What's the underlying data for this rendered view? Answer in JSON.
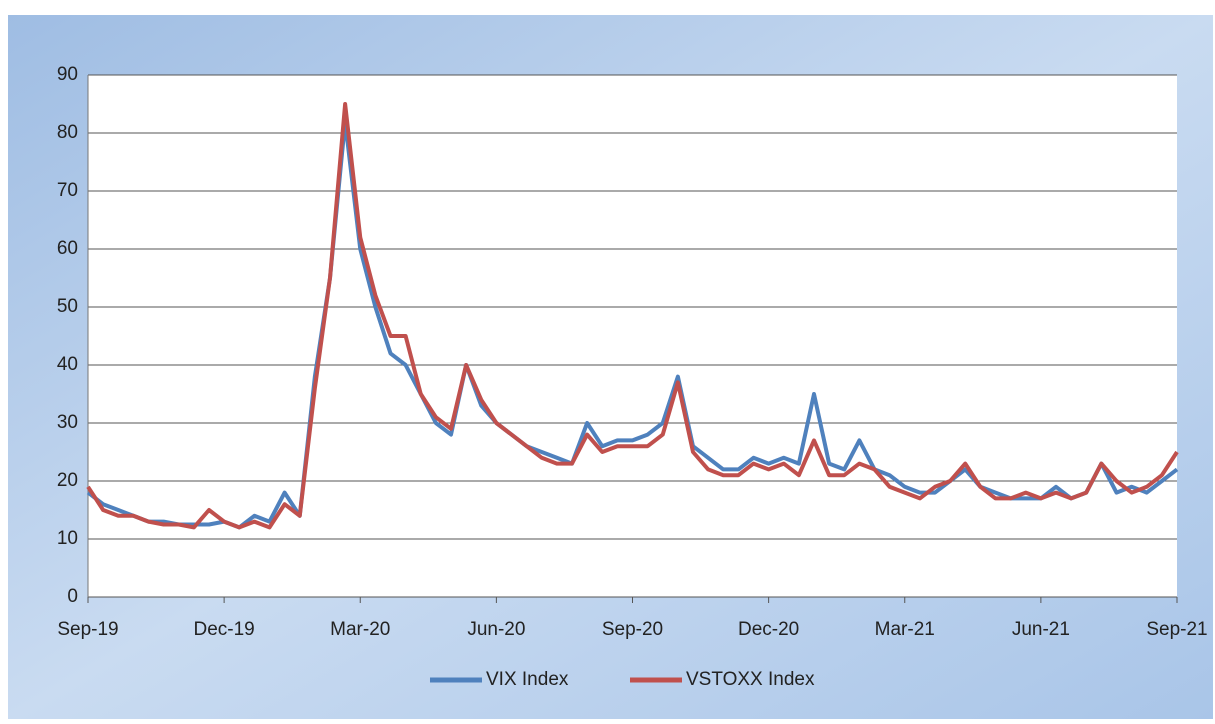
{
  "chart_data": {
    "type": "line",
    "categories": [
      "Sep-19",
      null,
      null,
      null,
      null,
      null,
      null,
      null,
      null,
      "Dec-19",
      null,
      null,
      null,
      null,
      null,
      null,
      null,
      null,
      "Mar-20",
      null,
      null,
      null,
      null,
      null,
      null,
      null,
      null,
      "Jun-20",
      null,
      null,
      null,
      null,
      null,
      null,
      null,
      null,
      "Sep-20",
      null,
      null,
      null,
      null,
      null,
      null,
      null,
      null,
      "Dec-20",
      null,
      null,
      null,
      null,
      null,
      null,
      null,
      null,
      "Mar-21",
      null,
      null,
      null,
      null,
      null,
      null,
      null,
      null,
      "Jun-21",
      null,
      null,
      null,
      null,
      null,
      null,
      null,
      null,
      "Sep-21"
    ],
    "series": [
      {
        "name": "VIX Index",
        "color": "#4f81bd",
        "values": [
          18,
          16,
          15,
          14,
          13,
          13,
          12.5,
          12.5,
          12.5,
          13,
          12,
          14,
          13,
          18,
          14,
          38,
          55,
          82,
          60,
          50,
          42,
          40,
          35,
          30,
          28,
          40,
          33,
          30,
          28,
          26,
          25,
          24,
          23,
          30,
          26,
          27,
          27,
          28,
          30,
          38,
          26,
          24,
          22,
          22,
          24,
          23,
          24,
          23,
          35,
          23,
          22,
          27,
          22,
          21,
          19,
          18,
          18,
          20,
          22,
          19,
          18,
          17,
          17,
          17,
          19,
          17,
          18,
          23,
          18,
          19,
          18,
          20,
          22
        ]
      },
      {
        "name": "VSTOXX Index",
        "color": "#c0504d",
        "values": [
          19,
          15,
          14,
          14,
          13,
          12.5,
          12.5,
          12,
          15,
          13,
          12,
          13,
          12,
          16,
          14,
          36,
          55,
          85,
          62,
          52,
          45,
          45,
          35,
          31,
          29,
          40,
          34,
          30,
          28,
          26,
          24,
          23,
          23,
          28,
          25,
          26,
          26,
          26,
          28,
          37,
          25,
          22,
          21,
          21,
          23,
          22,
          23,
          21,
          27,
          21,
          21,
          23,
          22,
          19,
          18,
          17,
          19,
          20,
          23,
          19,
          17,
          17,
          18,
          17,
          18,
          17,
          18,
          23,
          20,
          18,
          19,
          21,
          25
        ]
      }
    ],
    "ylim": [
      0,
      90
    ],
    "yticks": [
      0,
      10,
      20,
      30,
      40,
      50,
      60,
      70,
      80,
      90
    ],
    "grid": true,
    "legend": "bottom"
  }
}
